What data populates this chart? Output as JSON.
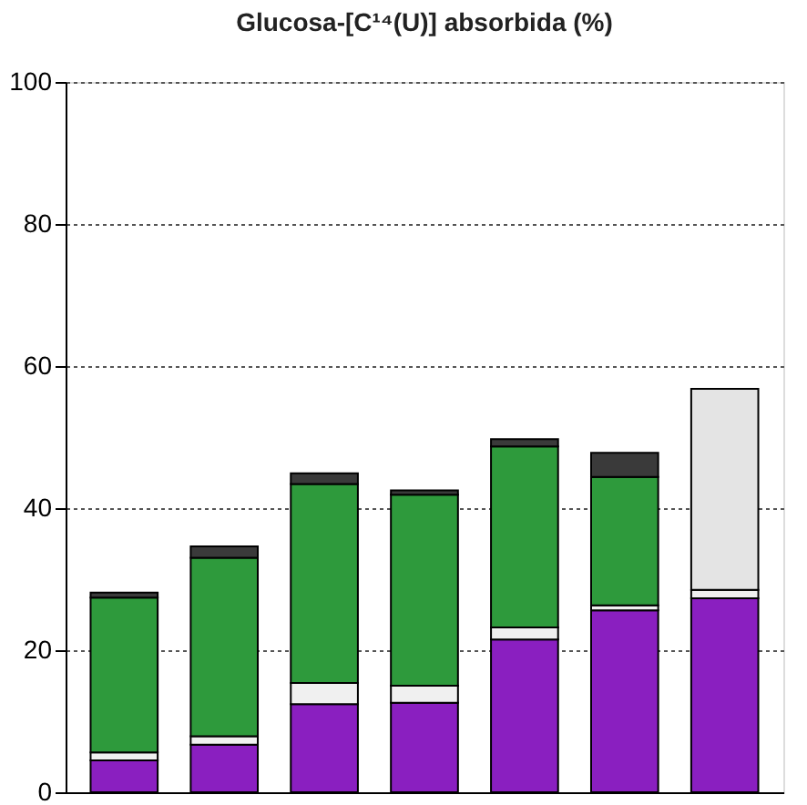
{
  "chart_data": {
    "type": "bar",
    "title": "Glucosa-[C¹⁴(U)] absorbida (%)",
    "categories": [
      null,
      null,
      null,
      null,
      null,
      null,
      null
    ],
    "stacked": true,
    "series": [
      {
        "color": "#8a1fc0",
        "values": [
          4.5,
          6.7,
          12.4,
          12.6,
          21.5,
          25.6,
          27.3
        ]
      },
      {
        "color": "#f0f0f0",
        "values": [
          1.1,
          1.2,
          3.0,
          2.4,
          1.7,
          0.7,
          1.2
        ]
      },
      {
        "color": "#2e9a3c",
        "values": [
          21.8,
          25.1,
          28.0,
          26.9,
          25.5,
          18.1,
          null
        ]
      },
      {
        "color": "#3a3a3a",
        "values": [
          0.7,
          1.6,
          1.5,
          0.6,
          1.0,
          3.4,
          null
        ]
      },
      {
        "color": "#e4e4e4",
        "values": [
          null,
          null,
          null,
          null,
          null,
          null,
          28.3
        ]
      }
    ],
    "ylim": [
      0,
      100
    ],
    "yticks": [
      0,
      20,
      40,
      60,
      80,
      100
    ],
    "grid": "y",
    "legend": false,
    "tick_labels": "y"
  }
}
